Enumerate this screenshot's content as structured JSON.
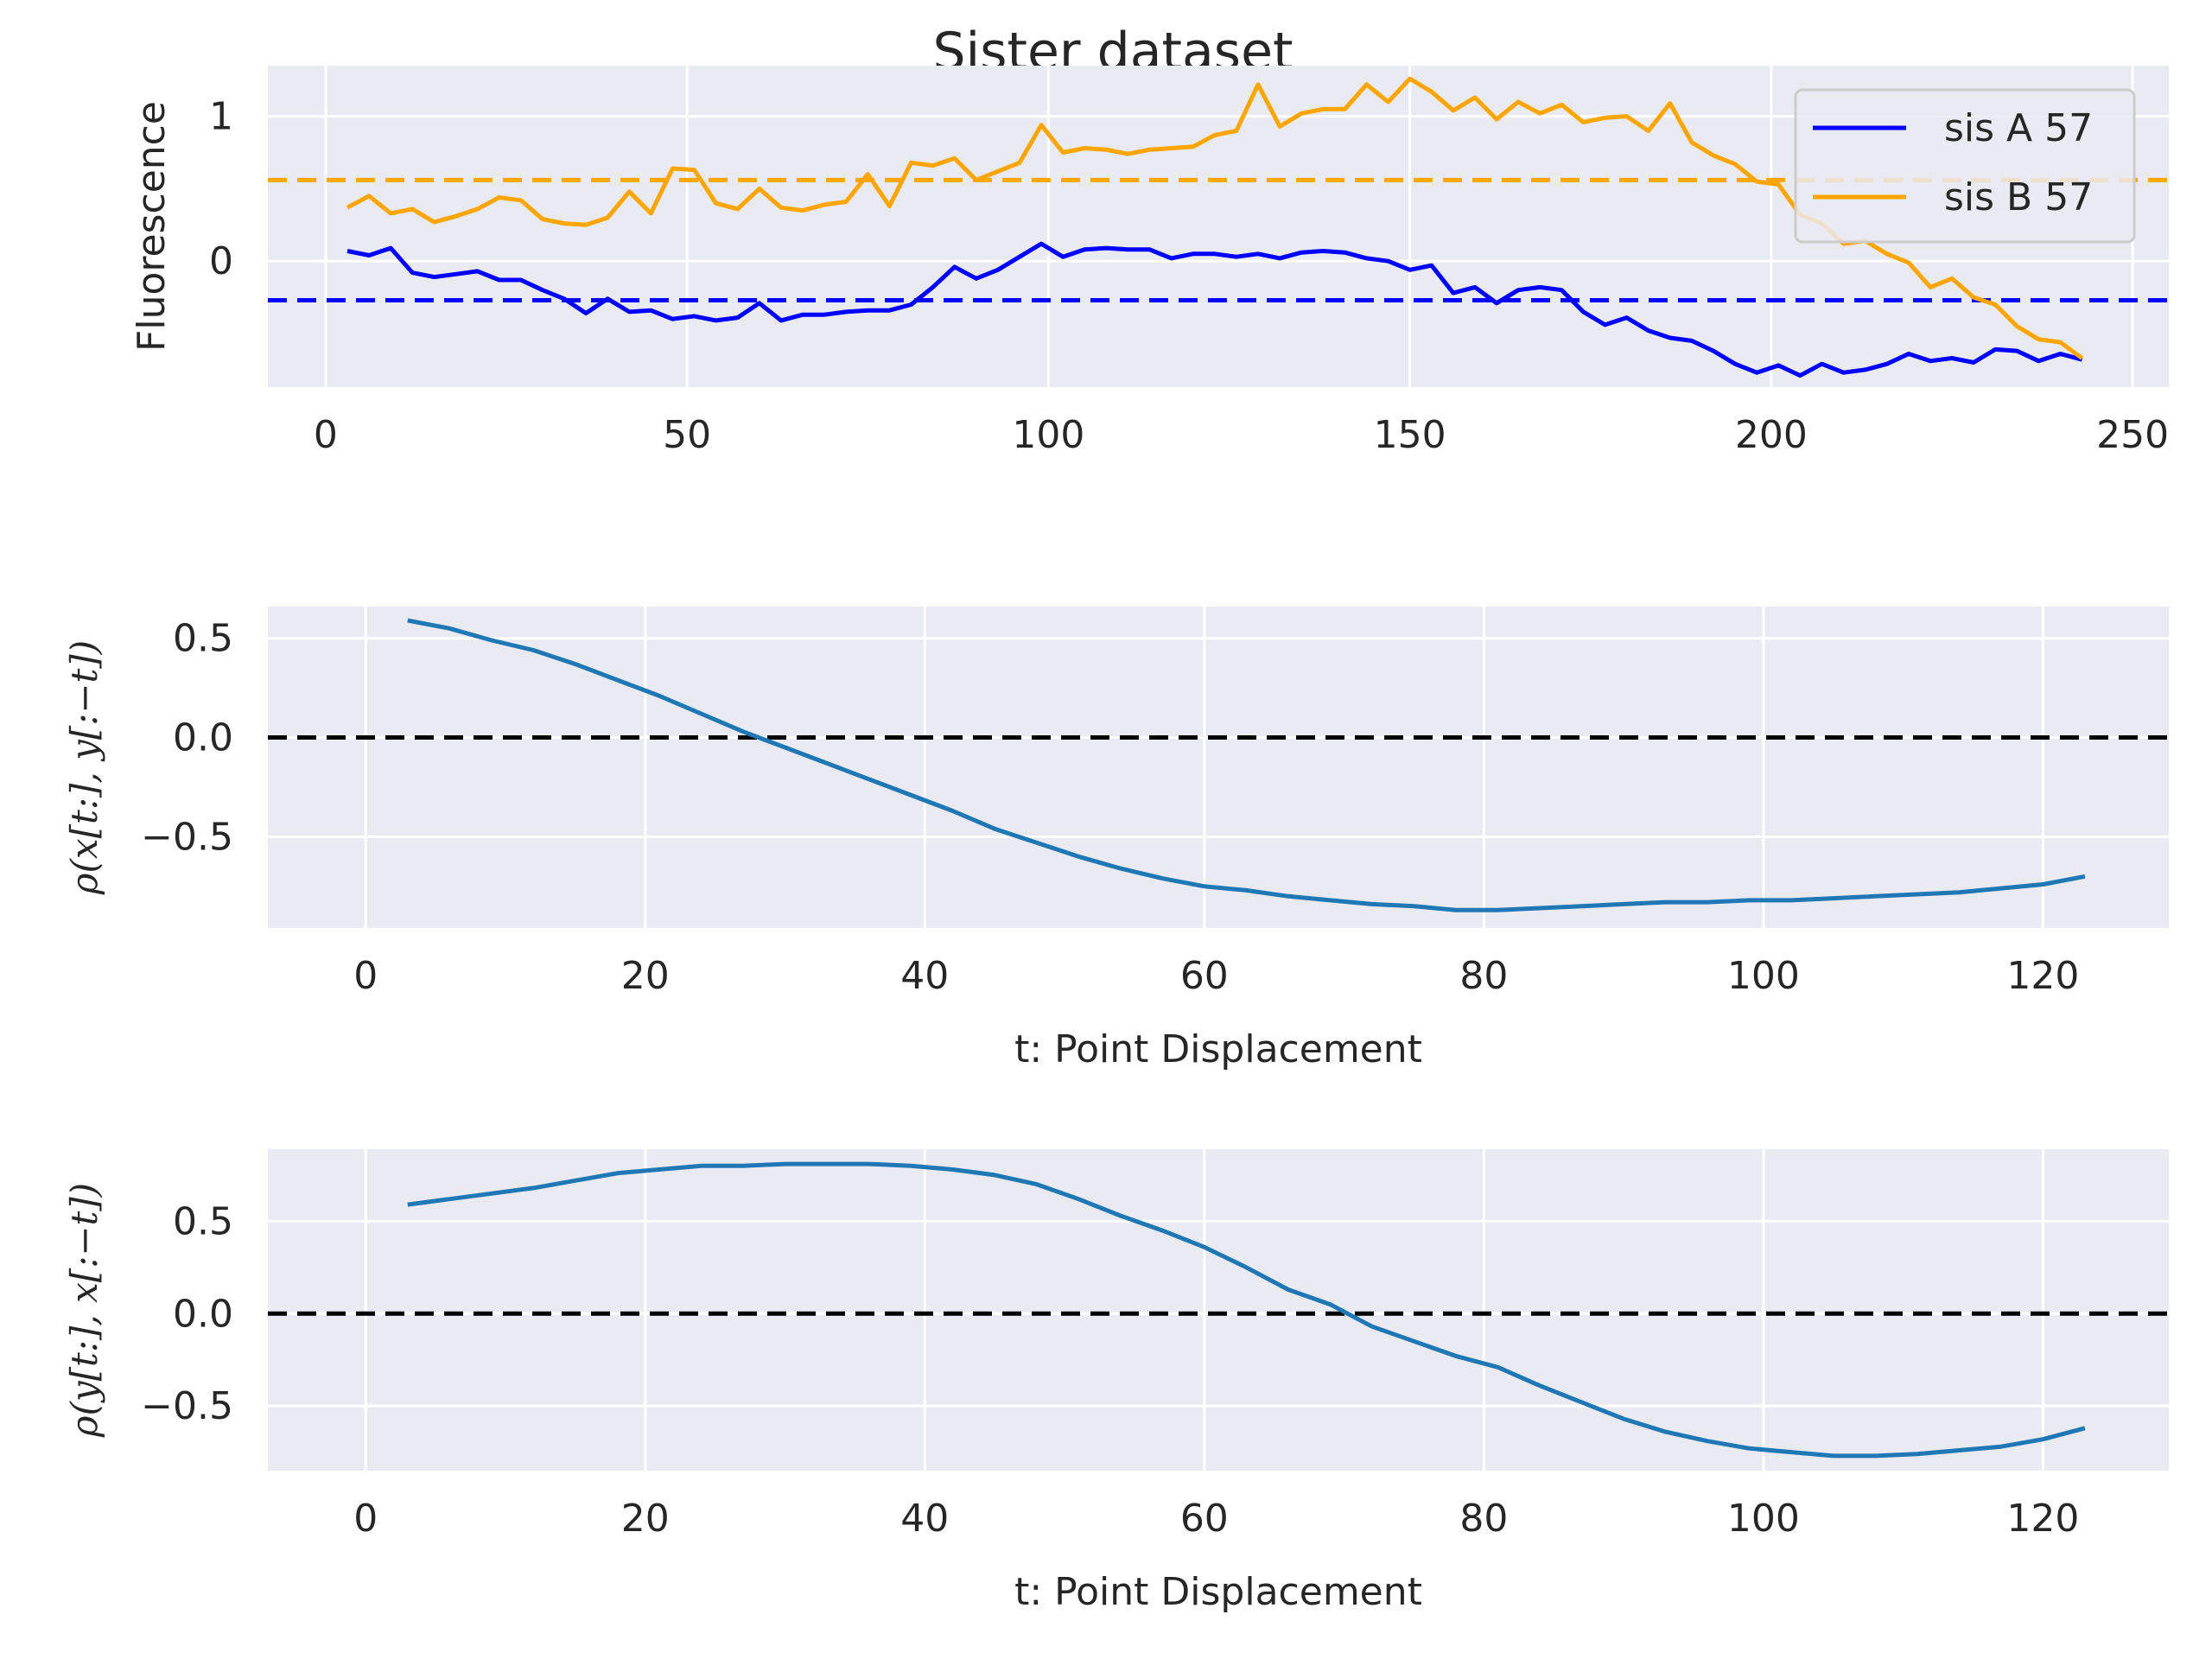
{
  "figure": {
    "title": "Sister dataset",
    "background_color": "#ffffff",
    "panel_color": "#eaeaf2",
    "grid": true
  },
  "chart_data": [
    {
      "type": "line",
      "title": "Sister dataset",
      "xlabel": "",
      "ylabel": "Fluorescence",
      "xlim": [
        -8,
        255
      ],
      "ylim": [
        -0.87,
        1.35
      ],
      "xticks": [
        0,
        50,
        100,
        150,
        200,
        250
      ],
      "xtick_labels": [
        "0",
        "50",
        "100",
        "150",
        "200",
        "250"
      ],
      "yticks": [
        1,
        0
      ],
      "ytick_labels": [
        "1",
        "0"
      ],
      "legend_placement": "upper right",
      "series": [
        {
          "name": "sis A 57",
          "color": "#0000ff",
          "x": [
            3,
            6,
            9,
            12,
            15,
            18,
            21,
            24,
            27,
            30,
            33,
            36,
            39,
            42,
            45,
            48,
            51,
            54,
            57,
            60,
            63,
            66,
            69,
            72,
            75,
            78,
            81,
            84,
            87,
            90,
            93,
            96,
            99,
            102,
            105,
            108,
            111,
            114,
            117,
            120,
            123,
            126,
            129,
            132,
            135,
            138,
            141,
            144,
            147,
            150,
            153,
            156,
            159,
            162,
            165,
            168,
            171,
            174,
            177,
            180,
            183,
            186,
            189,
            192,
            195,
            198,
            201,
            204,
            207,
            210,
            213,
            216,
            219,
            222,
            225,
            228,
            231,
            234,
            237,
            240,
            243
          ],
          "y": [
            0.07,
            0.04,
            0.09,
            -0.08,
            -0.11,
            -0.09,
            -0.07,
            -0.13,
            -0.13,
            -0.2,
            -0.26,
            -0.36,
            -0.26,
            -0.35,
            -0.34,
            -0.4,
            -0.38,
            -0.41,
            -0.39,
            -0.29,
            -0.41,
            -0.37,
            -0.37,
            -0.35,
            -0.34,
            -0.34,
            -0.3,
            -0.18,
            -0.04,
            -0.12,
            -0.06,
            0.03,
            0.12,
            0.03,
            0.08,
            0.09,
            0.08,
            0.08,
            0.02,
            0.05,
            0.05,
            0.03,
            0.05,
            0.02,
            0.06,
            0.07,
            0.06,
            0.02,
            0.0,
            -0.06,
            -0.03,
            -0.22,
            -0.18,
            -0.29,
            -0.2,
            -0.18,
            -0.2,
            -0.35,
            -0.44,
            -0.39,
            -0.48,
            -0.53,
            -0.55,
            -0.62,
            -0.71,
            -0.77,
            -0.72,
            -0.79,
            -0.71,
            -0.77,
            -0.75,
            -0.71,
            -0.64,
            -0.69,
            -0.67,
            -0.7,
            -0.61,
            -0.62,
            -0.69,
            -0.64,
            -0.68
          ]
        },
        {
          "name": "sis B 57",
          "color": "#ffa500",
          "x": [
            3,
            6,
            9,
            12,
            15,
            18,
            21,
            24,
            27,
            30,
            33,
            36,
            39,
            42,
            45,
            48,
            51,
            54,
            57,
            60,
            63,
            66,
            69,
            72,
            75,
            78,
            81,
            84,
            87,
            90,
            93,
            96,
            99,
            102,
            105,
            108,
            111,
            114,
            117,
            120,
            123,
            126,
            129,
            132,
            135,
            138,
            141,
            144,
            147,
            150,
            153,
            156,
            159,
            162,
            165,
            168,
            171,
            174,
            177,
            180,
            183,
            186,
            189,
            192,
            195,
            198,
            201,
            204,
            207,
            210,
            213,
            216,
            219,
            222,
            225,
            228,
            231,
            234,
            237,
            240,
            243
          ],
          "y": [
            0.37,
            0.45,
            0.33,
            0.36,
            0.27,
            0.31,
            0.36,
            0.44,
            0.42,
            0.29,
            0.26,
            0.25,
            0.3,
            0.48,
            0.33,
            0.64,
            0.63,
            0.4,
            0.36,
            0.5,
            0.37,
            0.35,
            0.39,
            0.41,
            0.6,
            0.38,
            0.68,
            0.66,
            0.71,
            0.56,
            0.62,
            0.68,
            0.94,
            0.75,
            0.78,
            0.77,
            0.74,
            0.77,
            0.78,
            0.79,
            0.87,
            0.9,
            1.22,
            0.93,
            1.02,
            1.05,
            1.05,
            1.22,
            1.1,
            1.26,
            1.17,
            1.04,
            1.13,
            0.98,
            1.1,
            1.02,
            1.08,
            0.96,
            0.99,
            1.0,
            0.9,
            1.09,
            0.82,
            0.73,
            0.67,
            0.55,
            0.53,
            0.32,
            0.26,
            0.12,
            0.14,
            0.05,
            -0.01,
            -0.18,
            -0.12,
            -0.25,
            -0.3,
            -0.45,
            -0.54,
            -0.56,
            -0.67
          ]
        }
      ],
      "reference_lines": [
        {
          "orientation": "horizontal",
          "y": 0.56,
          "color": "#ffa500",
          "style": "dashed"
        },
        {
          "orientation": "horizontal",
          "y": -0.27,
          "color": "#0000ff",
          "style": "dashed"
        }
      ]
    },
    {
      "type": "line",
      "xlabel": "t: Point Displacement",
      "ylabel": "ρ(x[t:], y[:−t])",
      "xlim": [
        -7,
        129
      ],
      "ylim": [
        -0.96,
        0.66
      ],
      "xticks": [
        0,
        20,
        40,
        60,
        80,
        100,
        120
      ],
      "xtick_labels": [
        "0",
        "20",
        "40",
        "60",
        "80",
        "100",
        "120"
      ],
      "yticks": [
        0.5,
        0.0,
        -0.5
      ],
      "ytick_labels": [
        "0.5",
        "0.0",
        "−0.5"
      ],
      "series": [
        {
          "color": "#1f77b4",
          "x": [
            3,
            6,
            9,
            12,
            15,
            18,
            21,
            24,
            27,
            30,
            33,
            36,
            39,
            42,
            45,
            48,
            51,
            54,
            57,
            60,
            63,
            66,
            69,
            72,
            75,
            78,
            81,
            84,
            87,
            90,
            93,
            96,
            99,
            102,
            105,
            108,
            111,
            114,
            117,
            120,
            123
          ],
          "y": [
            0.59,
            0.55,
            0.49,
            0.44,
            0.37,
            0.29,
            0.21,
            0.12,
            0.03,
            -0.05,
            -0.13,
            -0.21,
            -0.29,
            -0.37,
            -0.46,
            -0.53,
            -0.6,
            -0.66,
            -0.71,
            -0.75,
            -0.77,
            -0.8,
            -0.82,
            -0.84,
            -0.85,
            -0.87,
            -0.87,
            -0.86,
            -0.85,
            -0.84,
            -0.83,
            -0.83,
            -0.82,
            -0.82,
            -0.81,
            -0.8,
            -0.79,
            -0.78,
            -0.76,
            -0.74,
            -0.7
          ]
        }
      ],
      "reference_lines": [
        {
          "orientation": "horizontal",
          "y": 0.0,
          "color": "#000000",
          "style": "dashed"
        }
      ]
    },
    {
      "type": "line",
      "xlabel": "t: Point Displacement",
      "ylabel": "ρ(y[t:], x[:−t])",
      "xlim": [
        -7,
        129
      ],
      "ylim": [
        -0.85,
        0.89
      ],
      "xticks": [
        0,
        20,
        40,
        60,
        80,
        100,
        120
      ],
      "xtick_labels": [
        "0",
        "20",
        "40",
        "60",
        "80",
        "100",
        "120"
      ],
      "yticks": [
        0.5,
        0.0,
        -0.5
      ],
      "ytick_labels": [
        "0.5",
        "0.0",
        "−0.5"
      ],
      "series": [
        {
          "color": "#1f77b4",
          "x": [
            3,
            6,
            9,
            12,
            15,
            18,
            21,
            24,
            27,
            30,
            33,
            36,
            39,
            42,
            45,
            48,
            51,
            54,
            57,
            60,
            63,
            66,
            69,
            72,
            75,
            78,
            81,
            84,
            87,
            90,
            93,
            96,
            99,
            102,
            105,
            108,
            111,
            114,
            117,
            120,
            123
          ],
          "y": [
            0.59,
            0.62,
            0.65,
            0.68,
            0.72,
            0.76,
            0.78,
            0.8,
            0.8,
            0.81,
            0.81,
            0.81,
            0.8,
            0.78,
            0.75,
            0.7,
            0.62,
            0.53,
            0.45,
            0.36,
            0.25,
            0.13,
            0.05,
            -0.07,
            -0.15,
            -0.23,
            -0.29,
            -0.39,
            -0.48,
            -0.57,
            -0.64,
            -0.69,
            -0.73,
            -0.75,
            -0.77,
            -0.77,
            -0.76,
            -0.74,
            -0.72,
            -0.68,
            -0.62
          ]
        }
      ],
      "reference_lines": [
        {
          "orientation": "horizontal",
          "y": 0.0,
          "color": "#000000",
          "style": "dashed"
        }
      ]
    }
  ]
}
